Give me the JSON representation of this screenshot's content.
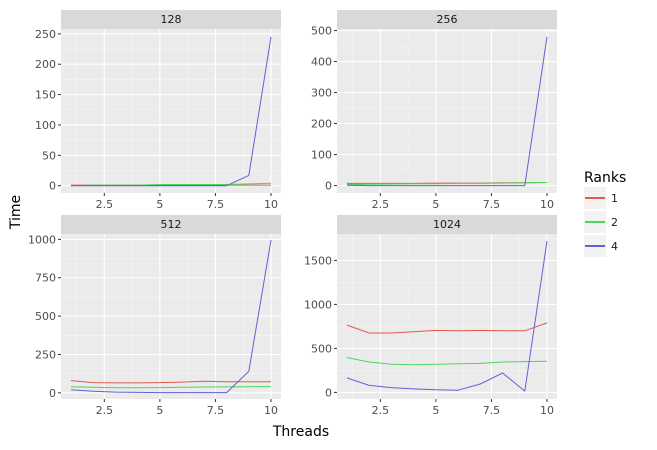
{
  "chart_data": {
    "type": "line",
    "xlabel": "Threads",
    "ylabel": "Time",
    "legend": {
      "title": "Ranks",
      "placement": "right",
      "entries": [
        {
          "label": "1",
          "color": "#E15A4A"
        },
        {
          "label": "2",
          "color": "#4DD55A"
        },
        {
          "label": "4",
          "color": "#6061D6"
        }
      ]
    },
    "colors": {
      "panel_bg": "#EBEBEB",
      "strip_bg": "#D9D9D9",
      "grid_major": "#FFFFFF",
      "grid_minor": "#F5F5F5"
    },
    "x_ticks": [
      2.5,
      5,
      7.5,
      10
    ],
    "x_tick_labels": [
      "2.5",
      "5",
      "7.5",
      "10"
    ],
    "xlim": [
      0.55,
      10.45
    ],
    "grid": true,
    "panels": [
      {
        "title": "128",
        "ylim": [
          -12,
          258
        ],
        "y_ticks": [
          0,
          50,
          100,
          150,
          200,
          250
        ],
        "y_tick_labels": [
          "0",
          "50",
          "100",
          "150",
          "200",
          "250"
        ],
        "series": [
          {
            "name": "1",
            "x": [
              1,
              2,
              3,
              4,
              5,
              6,
              7,
              8,
              9,
              10
            ],
            "y": [
              1,
              1,
              1,
              1,
              1,
              1,
              1,
              1,
              1,
              1
            ]
          },
          {
            "name": "2",
            "x": [
              1,
              2,
              3,
              4,
              5,
              6,
              7,
              8,
              9,
              10
            ],
            "y": [
              0,
              1,
              1,
              1,
              2,
              2,
              2,
              2,
              3,
              4
            ]
          },
          {
            "name": "4",
            "x": [
              1,
              2,
              3,
              4,
              5,
              6,
              7,
              8,
              9,
              10
            ],
            "y": [
              0,
              0,
              0,
              0,
              0,
              0,
              0,
              0,
              17,
              245
            ]
          }
        ]
      },
      {
        "title": "256",
        "ylim": [
          -24,
          505
        ],
        "y_ticks": [
          0,
          100,
          200,
          300,
          400,
          500
        ],
        "y_tick_labels": [
          "0",
          "100",
          "200",
          "300",
          "400",
          "500"
        ],
        "series": [
          {
            "name": "1",
            "x": [
              1,
              2,
              3,
              4,
              5,
              6,
              7,
              8,
              9,
              10
            ],
            "y": [
              7,
              7,
              7,
              7,
              8,
              8,
              8,
              9,
              9,
              10
            ]
          },
          {
            "name": "2",
            "x": [
              1,
              2,
              3,
              4,
              5,
              6,
              7,
              8,
              9,
              10
            ],
            "y": [
              3,
              4,
              5,
              6,
              6,
              7,
              7,
              8,
              9,
              10
            ]
          },
          {
            "name": "4",
            "x": [
              1,
              2,
              3,
              4,
              5,
              6,
              7,
              8,
              9,
              10
            ],
            "y": [
              1,
              0,
              0,
              0,
              0,
              0,
              0,
              0,
              0,
              480
            ]
          }
        ]
      },
      {
        "title": "512",
        "ylim": [
          -40,
          1035
        ],
        "y_ticks": [
          0,
          250,
          500,
          750,
          1000
        ],
        "y_tick_labels": [
          "0",
          "250",
          "500",
          "750",
          "1000"
        ],
        "series": [
          {
            "name": "1",
            "x": [
              1,
              2,
              3,
              4,
              5,
              6,
              7,
              8,
              9,
              10
            ],
            "y": [
              80,
              67,
              65,
              65,
              67,
              70,
              75,
              73,
              73,
              72
            ]
          },
          {
            "name": "2",
            "x": [
              1,
              2,
              3,
              4,
              5,
              6,
              7,
              8,
              9,
              10
            ],
            "y": [
              40,
              37,
              33,
              33,
              34,
              36,
              38,
              39,
              40,
              41
            ]
          },
          {
            "name": "4",
            "x": [
              1,
              2,
              3,
              4,
              5,
              6,
              7,
              8,
              9,
              10
            ],
            "y": [
              20,
              10,
              5,
              3,
              2,
              2,
              2,
              2,
              140,
              995
            ]
          }
        ]
      },
      {
        "title": "1024",
        "ylim": [
          -75,
          1800
        ],
        "y_ticks": [
          0,
          500,
          1000,
          1500
        ],
        "y_tick_labels": [
          "0",
          "500",
          "1000",
          "1500"
        ],
        "series": [
          {
            "name": "1",
            "x": [
              1,
              2,
              3,
              4,
              5,
              6,
              7,
              8,
              9,
              10
            ],
            "y": [
              765,
              675,
              675,
              690,
              705,
              700,
              705,
              700,
              700,
              790
            ]
          },
          {
            "name": "2",
            "x": [
              1,
              2,
              3,
              4,
              5,
              6,
              7,
              8,
              9,
              10
            ],
            "y": [
              395,
              345,
              320,
              315,
              320,
              325,
              330,
              345,
              350,
              355
            ]
          },
          {
            "name": "4",
            "x": [
              1,
              2,
              3,
              4,
              5,
              6,
              7,
              8,
              9,
              10
            ],
            "y": [
              165,
              80,
              55,
              40,
              30,
              25,
              95,
              220,
              15,
              1720
            ]
          }
        ]
      }
    ]
  }
}
